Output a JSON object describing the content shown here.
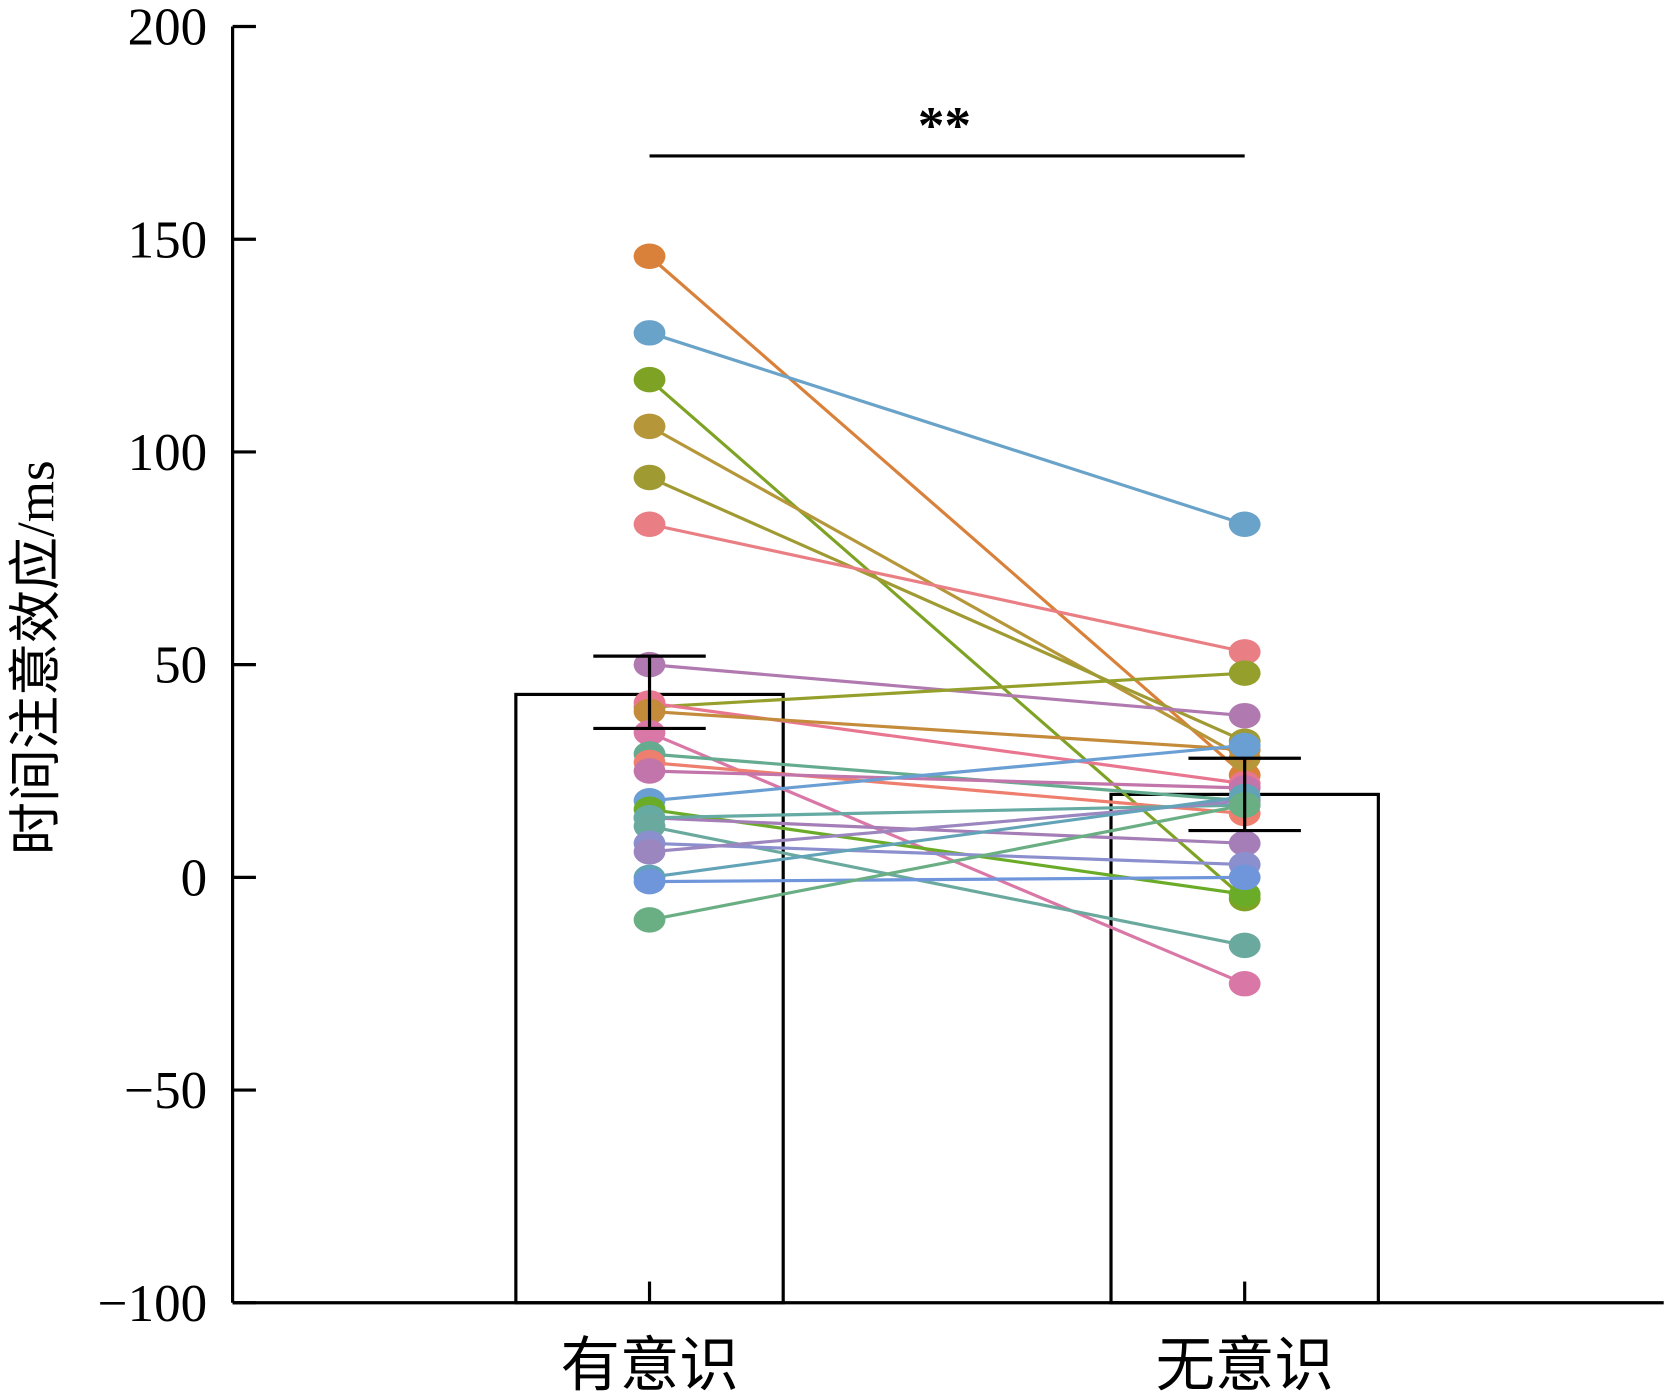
{
  "chart_data": {
    "type": "bar",
    "title": "",
    "xlabel": "",
    "ylabel": "时间注意效应/ms",
    "ylim": [
      -100,
      200
    ],
    "yticks": [
      "−100",
      "−50",
      "0",
      "50",
      "100",
      "150",
      "200"
    ],
    "ytick_values": [
      -100,
      -50,
      0,
      50,
      100,
      150,
      200
    ],
    "categories": [
      "有意识",
      "无意识"
    ],
    "values": [
      43,
      19.5
    ],
    "error": [
      [
        35,
        52
      ],
      [
        11,
        28
      ]
    ],
    "significance": "**",
    "paired_points": [
      {
        "color": "#d9813a",
        "values": [
          146,
          24
        ]
      },
      {
        "color": "#6aa3c9",
        "values": [
          128,
          83
        ]
      },
      {
        "color": "#7ea324",
        "values": [
          117,
          -5
        ]
      },
      {
        "color": "#b5973a",
        "values": [
          106,
          28
        ]
      },
      {
        "color": "#a09a32",
        "values": [
          94,
          32
        ]
      },
      {
        "color": "#e97f84",
        "values": [
          83,
          53
        ]
      },
      {
        "color": "#b07ab0",
        "values": [
          50,
          38
        ]
      },
      {
        "color": "#95a02c",
        "values": [
          40,
          48
        ]
      },
      {
        "color": "#e87690",
        "values": [
          41,
          22
        ]
      },
      {
        "color": "#c38b3a",
        "values": [
          39,
          30
        ]
      },
      {
        "color": "#d977a6",
        "values": [
          34,
          -25
        ]
      },
      {
        "color": "#65ab8f",
        "values": [
          29,
          18
        ]
      },
      {
        "color": "#ee7f6e",
        "values": [
          27,
          15
        ]
      },
      {
        "color": "#c275aa",
        "values": [
          25,
          21
        ]
      },
      {
        "color": "#6a9fd4",
        "values": [
          18,
          31
        ]
      },
      {
        "color": "#6aac28",
        "values": [
          16,
          -4
        ]
      },
      {
        "color": "#a57eb8",
        "values": [
          14,
          8
        ]
      },
      {
        "color": "#66aaa4",
        "values": [
          14,
          17
        ]
      },
      {
        "color": "#6aa99e",
        "values": [
          12,
          -16
        ]
      },
      {
        "color": "#8b8fce",
        "values": [
          8,
          3
        ]
      },
      {
        "color": "#9b86c0",
        "values": [
          6,
          18
        ]
      },
      {
        "color": "#63a3b8",
        "values": [
          0,
          19
        ]
      },
      {
        "color": "#6f95db",
        "values": [
          -1,
          0
        ]
      },
      {
        "color": "#6aae84",
        "values": [
          -10,
          17
        ]
      }
    ]
  }
}
